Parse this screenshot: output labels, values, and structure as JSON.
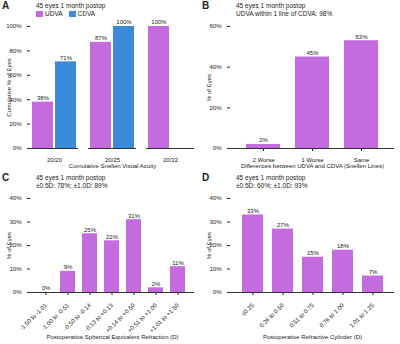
{
  "chart_data": [
    {
      "type": "bar",
      "panel_label": "A",
      "title": "45 eyes 1 month postop",
      "x_label": "Cumulative Snellen Visual Acuity",
      "y_label": "Cumulative % of Eyes",
      "categories": [
        "20/20",
        "20/25",
        "20/32"
      ],
      "series": [
        {
          "name": "UDVA",
          "color": "#c46be0",
          "values": [
            38,
            87,
            100
          ],
          "value_labels": [
            "38%",
            "87%",
            "100%"
          ]
        },
        {
          "name": "CDVA",
          "color": "#3b8ad9",
          "values": [
            71,
            100,
            null
          ],
          "value_labels": [
            "71%",
            "100%",
            null
          ]
        }
      ],
      "legend": "top-left",
      "data_labels": true,
      "ylim": [
        0,
        100
      ],
      "yticks": [
        {
          "value": 0,
          "label": "0%"
        },
        {
          "value": 20,
          "label": "20%"
        },
        {
          "value": 40,
          "label": "40%"
        },
        {
          "value": 60,
          "label": "60%"
        },
        {
          "value": 80,
          "label": "80%"
        },
        {
          "value": 100,
          "label": "100%"
        }
      ]
    },
    {
      "type": "bar",
      "panel_label": "B",
      "title": "45 eyes 1 month postop",
      "subtitle": "UDVA within 1 line of CDVA: 98%",
      "x_label": "Differences between UDVA and CDVA (Snellen Lines)",
      "y_label": "% of Eyes",
      "categories": [
        "2 Worse",
        "1 Worse",
        "Same"
      ],
      "values": [
        2,
        45,
        53
      ],
      "value_labels": [
        "2%",
        "45%",
        "53%"
      ],
      "color": "#c46be0",
      "data_labels": true,
      "ylim": [
        0,
        60
      ],
      "yticks": [
        {
          "value": 0,
          "label": "0%"
        },
        {
          "value": 20,
          "label": "20%"
        },
        {
          "value": 40,
          "label": "40%"
        },
        {
          "value": 60,
          "label": "60%"
        }
      ]
    },
    {
      "type": "bar",
      "panel_label": "C",
      "title": "45 eyes 1 month postop",
      "subtitle": "±0.5D: 78%; ±1.0D: 89%",
      "x_label": "Postoperative Spherical Equivalent Refraction (D)",
      "y_label": "% of Eyes",
      "categories": [
        "-1.50 to -1.01",
        "-1.00 to -0.51",
        "-0.50 to -0.14",
        "-0.13 to +0.13",
        "+0.14 to +0.50",
        "+0.51 to +1.00",
        "+1.01 to +1.50"
      ],
      "values": [
        0,
        9,
        25,
        22,
        31,
        2,
        11
      ],
      "value_labels": [
        "0%",
        "9%",
        "25%",
        "22%",
        "31%",
        "2%",
        "11%"
      ],
      "color": "#c46be0",
      "data_labels": true,
      "ylim": [
        0,
        40
      ],
      "yticks": [
        {
          "value": 0,
          "label": "0%"
        },
        {
          "value": 10,
          "label": "10%"
        },
        {
          "value": 20,
          "label": "20%"
        },
        {
          "value": 30,
          "label": "30%"
        },
        {
          "value": 40,
          "label": "40%"
        }
      ]
    },
    {
      "type": "bar",
      "panel_label": "D",
      "title": "45 eyes 1 month postop",
      "subtitle": "±0.5D: 60%; ±1.0D: 93%",
      "x_label": "Postoperative Refractive Cylinder (D)",
      "y_label": "% of Eyes",
      "categories": [
        "≤0.25",
        "0.26 to 0.50",
        "0.51 to 0.75",
        "0.76 to 1.00",
        "1.01 to 1.25"
      ],
      "values": [
        33,
        27,
        15,
        18,
        7
      ],
      "value_labels": [
        "33%",
        "27%",
        "15%",
        "18%",
        "7%"
      ],
      "color": "#c46be0",
      "data_labels": true,
      "ylim": [
        0,
        40
      ],
      "yticks": [
        {
          "value": 0,
          "label": "0%"
        },
        {
          "value": 10,
          "label": "10%"
        },
        {
          "value": 20,
          "label": "20%"
        },
        {
          "value": 30,
          "label": "30%"
        },
        {
          "value": 40,
          "label": "40%"
        }
      ]
    }
  ]
}
